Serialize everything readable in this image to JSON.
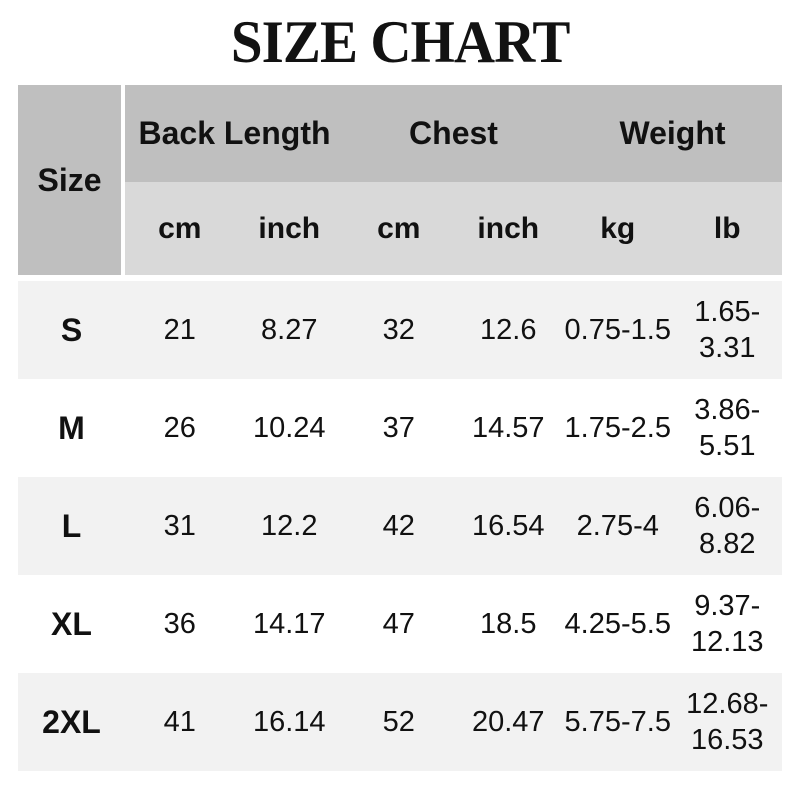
{
  "title": "SIZE CHART",
  "colors": {
    "header_dark": "#bfbfbf",
    "header_light": "#d9d9d9",
    "row_stripe": "#f2f2f2",
    "row_plain": "#ffffff",
    "text": "#111111"
  },
  "table": {
    "corner_label": "Size",
    "groups": [
      {
        "label": "Back Length"
      },
      {
        "label": "Chest"
      },
      {
        "label": "Weight"
      }
    ],
    "units": [
      "cm",
      "inch",
      "cm",
      "inch",
      "kg",
      "lb"
    ],
    "rows": [
      {
        "size": "S",
        "back_cm": "21",
        "back_inch": "8.27",
        "chest_cm": "32",
        "chest_inch": "12.6",
        "kg": "0.75-1.5",
        "lb": "1.65-3.31"
      },
      {
        "size": "M",
        "back_cm": "26",
        "back_inch": "10.24",
        "chest_cm": "37",
        "chest_inch": "14.57",
        "kg": "1.75-2.5",
        "lb": "3.86-5.51"
      },
      {
        "size": "L",
        "back_cm": "31",
        "back_inch": "12.2",
        "chest_cm": "42",
        "chest_inch": "16.54",
        "kg": "2.75-4",
        "lb": "6.06-8.82"
      },
      {
        "size": "XL",
        "back_cm": "36",
        "back_inch": "14.17",
        "chest_cm": "47",
        "chest_inch": "18.5",
        "kg": "4.25-5.5",
        "lb": "9.37-12.13"
      },
      {
        "size": "2XL",
        "back_cm": "41",
        "back_inch": "16.14",
        "chest_cm": "52",
        "chest_inch": "20.47",
        "kg": "5.75-7.5",
        "lb": "12.68-16.53"
      }
    ]
  }
}
